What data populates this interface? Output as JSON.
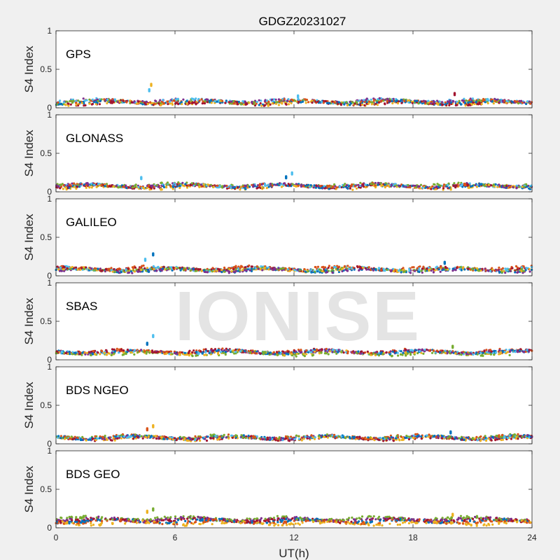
{
  "figure": {
    "title": "GDGZ20231027",
    "watermark": "IONISE"
  },
  "chart_data": {
    "type": "scatter",
    "title": "GDGZ20231027",
    "xlabel": "UT(h)",
    "ylabel": "S4 Index",
    "xlim": [
      0,
      24
    ],
    "ylim": [
      0,
      1
    ],
    "xticks": [
      "0",
      "6",
      "12",
      "18",
      "24"
    ],
    "yticks": [
      "0",
      "0.5",
      "1"
    ],
    "colors": [
      "#0072bd",
      "#d95319",
      "#edb120",
      "#7e2f8e",
      "#77ac30",
      "#4dbeee",
      "#a2142f"
    ],
    "panels": [
      {
        "name": "GPS",
        "series": [
          {
            "color": "#0072bd",
            "base": 0.07
          },
          {
            "color": "#d95319",
            "base": 0.08
          },
          {
            "color": "#edb120",
            "base": 0.06
          },
          {
            "color": "#7e2f8e",
            "base": 0.09
          },
          {
            "color": "#77ac30",
            "base": 0.08
          },
          {
            "color": "#4dbeee",
            "base": 0.09
          },
          {
            "color": "#a2142f",
            "base": 0.06
          }
        ],
        "spikes": [
          {
            "x": 4.8,
            "y": 0.31,
            "color": "#edb120"
          },
          {
            "x": 4.7,
            "y": 0.24,
            "color": "#4dbeee"
          },
          {
            "x": 20.1,
            "y": 0.19,
            "color": "#a2142f"
          },
          {
            "x": 12.2,
            "y": 0.16,
            "color": "#4dbeee"
          }
        ]
      },
      {
        "name": "GLONASS",
        "series": [
          {
            "color": "#0072bd",
            "base": 0.07
          },
          {
            "color": "#d95319",
            "base": 0.08
          },
          {
            "color": "#edb120",
            "base": 0.06
          },
          {
            "color": "#7e2f8e",
            "base": 0.08
          },
          {
            "color": "#77ac30",
            "base": 0.09
          },
          {
            "color": "#4dbeee",
            "base": 0.08
          },
          {
            "color": "#a2142f",
            "base": 0.07
          }
        ],
        "spikes": [
          {
            "x": 4.3,
            "y": 0.19,
            "color": "#4dbeee"
          },
          {
            "x": 11.9,
            "y": 0.25,
            "color": "#4dbeee"
          },
          {
            "x": 11.6,
            "y": 0.2,
            "color": "#0072bd"
          }
        ]
      },
      {
        "name": "GALILEO",
        "series": [
          {
            "color": "#0072bd",
            "base": 0.07
          },
          {
            "color": "#d95319",
            "base": 0.1
          },
          {
            "color": "#edb120",
            "base": 0.08
          },
          {
            "color": "#7e2f8e",
            "base": 0.07
          },
          {
            "color": "#77ac30",
            "base": 0.08
          },
          {
            "color": "#4dbeee",
            "base": 0.09
          },
          {
            "color": "#a2142f",
            "base": 0.09
          }
        ],
        "spikes": [
          {
            "x": 4.9,
            "y": 0.29,
            "color": "#0072bd"
          },
          {
            "x": 4.5,
            "y": 0.22,
            "color": "#4dbeee"
          },
          {
            "x": 19.6,
            "y": 0.18,
            "color": "#0072bd"
          }
        ]
      },
      {
        "name": "SBAS",
        "series": [
          {
            "color": "#0072bd",
            "base": 0.1
          },
          {
            "color": "#d95319",
            "base": 0.11
          },
          {
            "color": "#edb120",
            "base": 0.09
          },
          {
            "color": "#7e2f8e",
            "base": 0.1
          },
          {
            "color": "#77ac30",
            "base": 0.08
          },
          {
            "color": "#4dbeee",
            "base": 0.1
          },
          {
            "color": "#a2142f",
            "base": 0.11
          }
        ],
        "spikes": [
          {
            "x": 4.9,
            "y": 0.32,
            "color": "#4dbeee"
          },
          {
            "x": 4.6,
            "y": 0.22,
            "color": "#0072bd"
          },
          {
            "x": 20.0,
            "y": 0.18,
            "color": "#77ac30"
          }
        ]
      },
      {
        "name": "BDS NGEO",
        "series": [
          {
            "color": "#0072bd",
            "base": 0.08
          },
          {
            "color": "#d95319",
            "base": 0.09
          },
          {
            "color": "#edb120",
            "base": 0.07
          },
          {
            "color": "#7e2f8e",
            "base": 0.08
          },
          {
            "color": "#77ac30",
            "base": 0.09
          },
          {
            "color": "#4dbeee",
            "base": 0.08
          },
          {
            "color": "#a2142f",
            "base": 0.07
          }
        ],
        "spikes": [
          {
            "x": 4.9,
            "y": 0.24,
            "color": "#edb120"
          },
          {
            "x": 4.6,
            "y": 0.2,
            "color": "#d95319"
          },
          {
            "x": 19.9,
            "y": 0.16,
            "color": "#0072bd"
          }
        ]
      },
      {
        "name": "BDS GEO",
        "series": [
          {
            "color": "#7e2f8e",
            "base": 0.11
          },
          {
            "color": "#a2142f",
            "base": 0.1
          },
          {
            "color": "#0072bd",
            "base": 0.09
          },
          {
            "color": "#d95319",
            "base": 0.08
          },
          {
            "color": "#edb120",
            "base": 0.06
          },
          {
            "color": "#77ac30",
            "base": 0.12
          }
        ],
        "spikes": [
          {
            "x": 4.9,
            "y": 0.25,
            "color": "#77ac30"
          },
          {
            "x": 4.6,
            "y": 0.22,
            "color": "#edb120"
          },
          {
            "x": 20.0,
            "y": 0.18,
            "color": "#edb120"
          }
        ]
      }
    ]
  }
}
